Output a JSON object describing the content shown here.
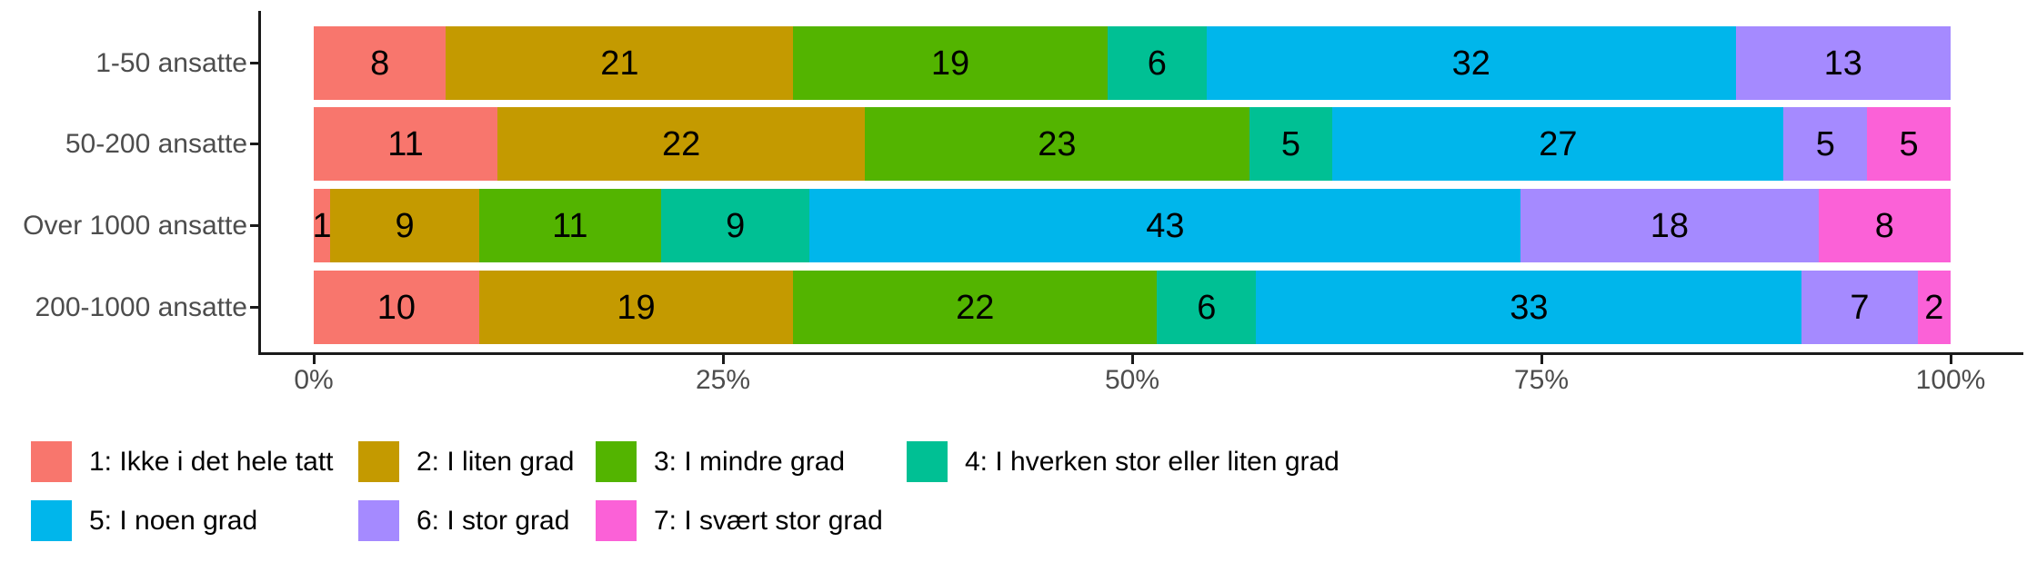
{
  "chart_data": {
    "type": "bar",
    "subtype": "stacked-percent",
    "orientation": "horizontal",
    "title": "",
    "xlabel": "",
    "ylabel": "",
    "grid": false,
    "legend_position": "bottom",
    "xlim": [
      0,
      100
    ],
    "x_ticks": [
      "0%",
      "25%",
      "50%",
      "75%",
      "100%"
    ],
    "categories": [
      "1-50 ansatte",
      "50-200 ansatte",
      "Over 1000 ansatte",
      "200-1000 ansatte"
    ],
    "series": [
      {
        "name": "1: Ikke i det hele tatt",
        "color": "#F8766D",
        "values": [
          8,
          11,
          1,
          10
        ]
      },
      {
        "name": "2: I liten grad",
        "color": "#C49A00",
        "values": [
          21,
          22,
          9,
          19
        ]
      },
      {
        "name": "3: I mindre grad",
        "color": "#53B400",
        "values": [
          19,
          23,
          11,
          22
        ]
      },
      {
        "name": "4: I hverken stor eller liten grad",
        "color": "#00C094",
        "values": [
          6,
          5,
          9,
          6
        ]
      },
      {
        "name": "5: I noen grad",
        "color": "#00B6EB",
        "values": [
          32,
          27,
          43,
          33
        ]
      },
      {
        "name": "6: I stor grad",
        "color": "#A58AFF",
        "values": [
          13,
          5,
          18,
          7
        ]
      },
      {
        "name": "7: I svært stor grad",
        "color": "#FB61D7",
        "values": [
          0,
          5,
          8,
          2
        ]
      }
    ]
  },
  "colors": {
    "axis_text": "#4d4d4d",
    "axis_line": "#1a1a1a",
    "bar_label": "#000000",
    "background": "#ffffff"
  }
}
